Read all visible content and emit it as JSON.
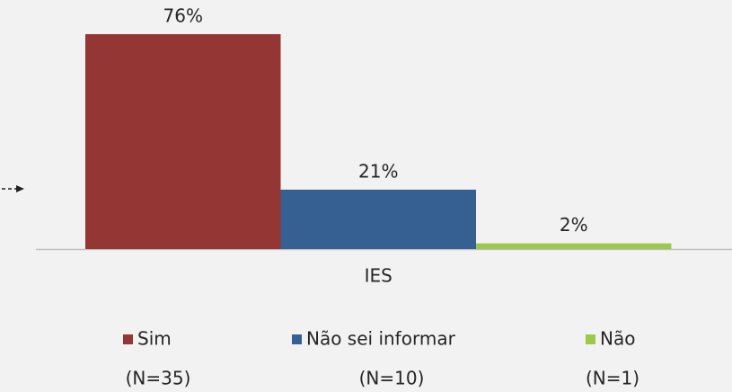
{
  "chart_data": {
    "type": "bar",
    "categories": [
      "IES"
    ],
    "series": [
      {
        "name": "Sim",
        "color": "#943634",
        "values": [
          76
        ],
        "value_labels": [
          "76%"
        ],
        "n_label": "(N=35)"
      },
      {
        "name": "Não sei informar",
        "color": "#366092",
        "values": [
          21
        ],
        "value_labels": [
          "21%"
        ],
        "n_label": "(N=10)"
      },
      {
        "name": "Não",
        "color": "#9bc94c",
        "values": [
          2
        ],
        "value_labels": [
          "2%"
        ],
        "n_label": "(N=1)"
      }
    ]
  }
}
